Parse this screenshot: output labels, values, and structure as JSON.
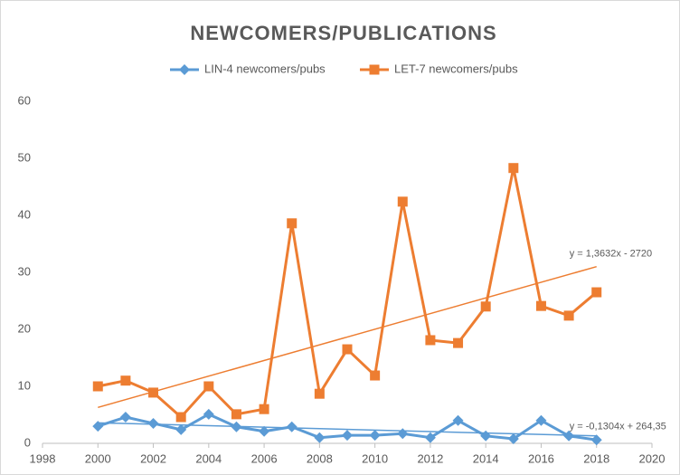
{
  "chart_data": {
    "type": "line",
    "title": "NEWCOMERS/PUBLICATIONS",
    "x": [
      2000,
      2001,
      2002,
      2003,
      2004,
      2005,
      2006,
      2007,
      2008,
      2009,
      2010,
      2011,
      2012,
      2013,
      2014,
      2015,
      2016,
      2017,
      2018
    ],
    "series": [
      {
        "name": "LIN-4 newcomers/pubs",
        "color": "#5b9bd5",
        "marker": "diamond",
        "values": [
          3.0,
          4.6,
          3.5,
          2.4,
          5.1,
          2.9,
          2.1,
          2.9,
          1.0,
          1.4,
          1.4,
          1.7,
          1.0,
          4.0,
          1.3,
          0.8,
          4.0,
          1.3,
          0.6
        ],
        "trendline": {
          "label": "y = -0,1304x + 264,35",
          "x": [
            2000,
            2018
          ],
          "values": [
            3.6,
            1.3
          ]
        }
      },
      {
        "name": "LET-7 newcomers/pubs",
        "color": "#ed7d31",
        "marker": "square",
        "values": [
          10.0,
          11.0,
          8.9,
          4.6,
          10.0,
          5.1,
          6.0,
          38.6,
          8.7,
          16.5,
          11.9,
          42.4,
          18.1,
          17.6,
          24.0,
          48.3,
          24.1,
          22.4,
          26.5
        ],
        "trendline": {
          "label": "y = 1,3632x - 2720",
          "x": [
            2000,
            2018
          ],
          "values": [
            6.3,
            31.0
          ]
        }
      }
    ],
    "xlim": [
      1998,
      2020
    ],
    "xticks": [
      1998,
      2000,
      2002,
      2004,
      2006,
      2008,
      2010,
      2012,
      2014,
      2016,
      2018,
      2020
    ],
    "ylim": [
      0,
      60
    ],
    "yticks": [
      0,
      10,
      20,
      30,
      40,
      50,
      60
    ],
    "grid": false,
    "legend": "top"
  }
}
